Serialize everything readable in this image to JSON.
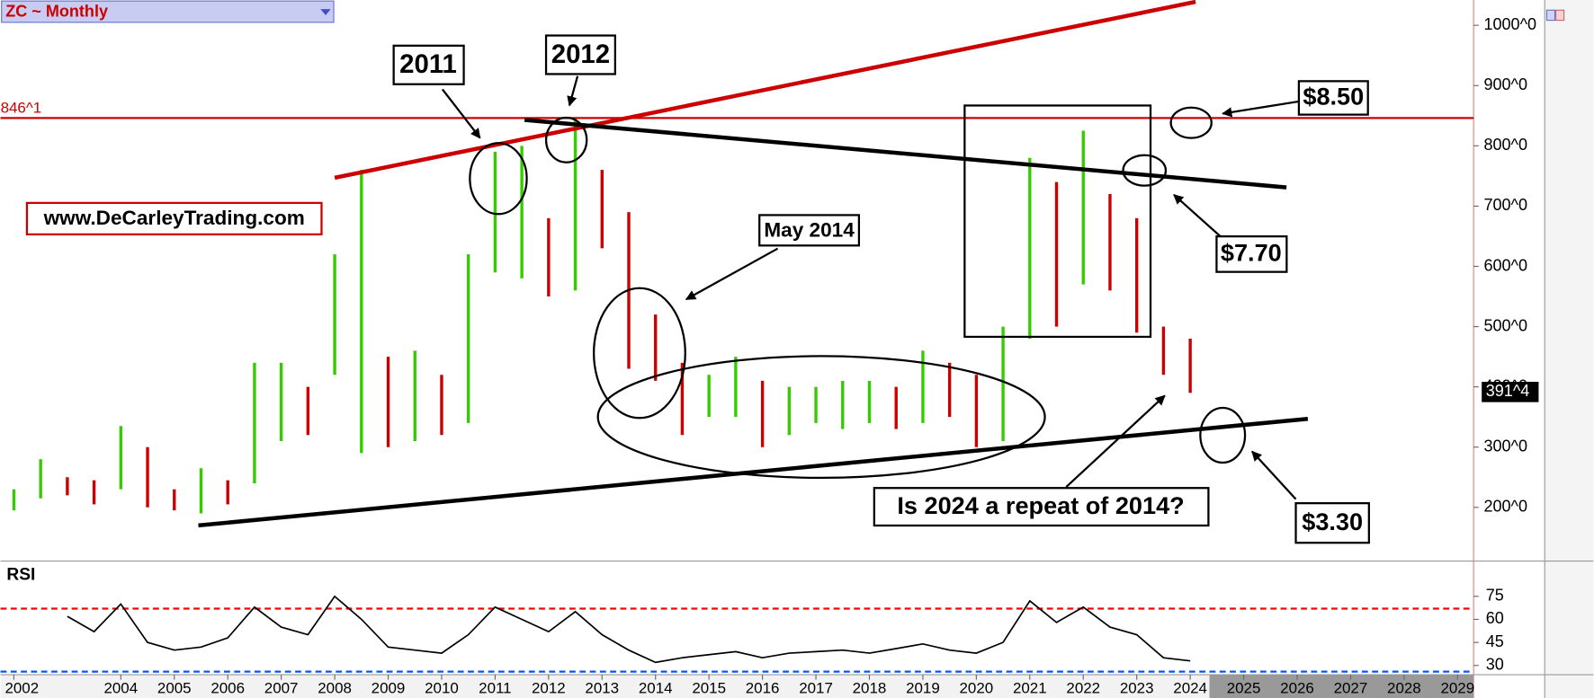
{
  "chart_data": {
    "type": "ohlc",
    "title": "ZC ~ Monthly",
    "x": [
      2002.0,
      2002.5,
      2003.0,
      2003.5,
      2004.0,
      2004.5,
      2005.0,
      2005.5,
      2006.0,
      2006.5,
      2007.0,
      2007.5,
      2008.0,
      2008.5,
      2009.0,
      2009.5,
      2010.0,
      2010.5,
      2011.0,
      2011.5,
      2012.0,
      2012.5,
      2013.0,
      2013.5,
      2014.0,
      2014.5,
      2015.0,
      2015.5,
      2016.0,
      2016.5,
      2017.0,
      2017.5,
      2018.0,
      2018.5,
      2019.0,
      2019.5,
      2020.0,
      2020.5,
      2021.0,
      2021.5,
      2022.0,
      2022.5,
      2023.0,
      2023.5,
      2024.0
    ],
    "high": [
      230,
      280,
      250,
      245,
      335,
      300,
      230,
      265,
      245,
      440,
      440,
      400,
      620,
      760,
      450,
      460,
      420,
      620,
      790,
      800,
      680,
      845,
      760,
      690,
      520,
      440,
      420,
      450,
      410,
      400,
      400,
      410,
      410,
      400,
      460,
      440,
      420,
      500,
      780,
      740,
      825,
      720,
      680,
      500,
      480
    ],
    "low": [
      195,
      215,
      220,
      205,
      230,
      200,
      195,
      190,
      205,
      240,
      310,
      320,
      420,
      290,
      300,
      310,
      320,
      340,
      590,
      580,
      550,
      560,
      630,
      430,
      410,
      320,
      350,
      350,
      300,
      320,
      340,
      330,
      340,
      330,
      340,
      350,
      300,
      310,
      480,
      500,
      570,
      560,
      490,
      420,
      390
    ],
    "up_color": "#33cc00",
    "down_color": "#cc0000",
    "xlim": [
      2001.75,
      2029.3
    ],
    "xticks": [
      2002,
      2004,
      2005,
      2006,
      2007,
      2008,
      2009,
      2010,
      2011,
      2012,
      2013,
      2014,
      2015,
      2016,
      2017,
      2018,
      2019,
      2020,
      2021,
      2022,
      2023,
      2024,
      2025,
      2026,
      2027,
      2028,
      2029
    ],
    "ylim": [
      116,
      1042
    ],
    "yticks": [
      {
        "value": 1000,
        "label": "1000^0"
      },
      {
        "value": 900,
        "label": "900^0"
      },
      {
        "value": 800,
        "label": "800^0"
      },
      {
        "value": 700,
        "label": "700^0"
      },
      {
        "value": 600,
        "label": "600^0"
      },
      {
        "value": 500,
        "label": "500^0"
      },
      {
        "value": 400,
        "label": "400^0"
      },
      {
        "value": 300,
        "label": "300^0"
      },
      {
        "value": 200,
        "label": "200^0"
      }
    ],
    "price_line": {
      "value": 846.125,
      "label": "846^1",
      "color": "#cc0000"
    },
    "last_price": {
      "value": 391.5,
      "label": "391^4"
    },
    "trendlines": [
      {
        "x": [
          2008.0,
          2024.1
        ],
        "y": [
          747,
          1039
        ],
        "color": "#cc0000"
      },
      {
        "x": [
          2011.55,
          2025.8
        ],
        "y": [
          843,
          731
        ],
        "color": "#000000"
      },
      {
        "x": [
          2005.45,
          2026.2
        ],
        "y": [
          170,
          347
        ],
        "color": "#000000"
      }
    ],
    "annotations": [
      "2011",
      "2012",
      "May 2014",
      "Is 2024 a repeat of 2014?",
      "$8.50",
      "$7.70",
      "$3.30",
      "www.DeCarleyTrading.com"
    ],
    "rsi": {
      "label": "RSI",
      "values": [
        null,
        null,
        62,
        52,
        70,
        45,
        40,
        42,
        48,
        68,
        55,
        50,
        75,
        60,
        42,
        40,
        38,
        50,
        68,
        60,
        52,
        65,
        50,
        40,
        32,
        35,
        37,
        39,
        35,
        38,
        39,
        40,
        38,
        41,
        44,
        40,
        38,
        45,
        72,
        58,
        68,
        55,
        50,
        35,
        33
      ],
      "color": "#000000",
      "ylim": [
        24,
        96
      ],
      "yticks": [
        75,
        60,
        45,
        30
      ],
      "levels": [
        {
          "value": 67,
          "color": "#ff0000"
        },
        {
          "value": 26,
          "color": "#0055ff"
        }
      ]
    }
  }
}
